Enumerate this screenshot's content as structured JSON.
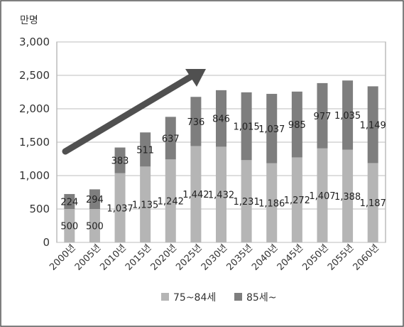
{
  "chart_data": {
    "type": "bar",
    "stacked": true,
    "unit_label": "만명",
    "categories": [
      "2000년",
      "2005년",
      "2010년",
      "2015년",
      "2020년",
      "2025년",
      "2030년",
      "2035년",
      "2040년",
      "2045년",
      "2050년",
      "2055년",
      "2060년"
    ],
    "series": [
      {
        "name": "75~84세",
        "values": [
          500,
          500,
          1037,
          1135,
          1242,
          1442,
          1432,
          1231,
          1186,
          1272,
          1407,
          1388,
          1187
        ],
        "labels": [
          "500",
          "500",
          "1,037",
          "1,135",
          "1,242",
          "1,442",
          "1,432",
          "1,231",
          "1,186",
          "1,272",
          "1,407",
          "1,388",
          "1,187"
        ],
        "color": "#b5b5b5"
      },
      {
        "name": "85세~",
        "values": [
          224,
          294,
          383,
          511,
          637,
          736,
          846,
          1015,
          1037,
          985,
          977,
          1035,
          1149
        ],
        "labels": [
          "224",
          "294",
          "383",
          "511",
          "637",
          "736",
          "846",
          "1,015",
          "1,037",
          "985",
          "977",
          "1,035",
          "1,149"
        ],
        "color": "#7e7e7e"
      }
    ],
    "ylim": [
      0,
      3000
    ],
    "yticks": [
      0,
      500,
      1000,
      1500,
      2000,
      2500,
      3000
    ],
    "ytick_labels": [
      "0",
      "500",
      "1,000",
      "1,500",
      "2,000",
      "2,500",
      "3,000"
    ],
    "grid": true,
    "legend": "bottom",
    "annotation": "upward-trend-arrow"
  }
}
